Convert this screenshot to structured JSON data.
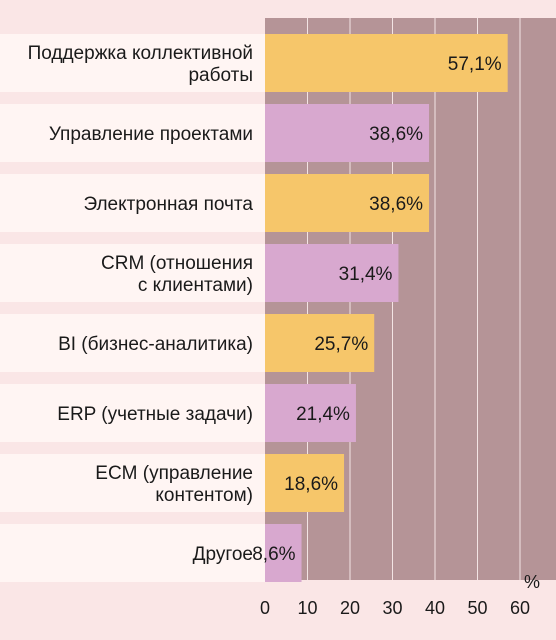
{
  "chart_data": {
    "type": "bar",
    "orientation": "horizontal",
    "categories": [
      [
        "Поддержка коллективной",
        "работы"
      ],
      [
        "Управление проектами"
      ],
      [
        "Электронная почта"
      ],
      [
        "CRM (отношения",
        "с клиентами)"
      ],
      [
        "BI (бизнес-аналитика)"
      ],
      [
        "ERP (учетные задачи)"
      ],
      [
        "ECM (управление",
        "контентом)"
      ],
      [
        "Другое"
      ]
    ],
    "values": [
      57.1,
      38.6,
      38.6,
      31.4,
      25.7,
      21.4,
      18.6,
      8.6
    ],
    "value_labels": [
      "57,1%",
      "38,6%",
      "38,6%",
      "31,4%",
      "25,7%",
      "21,4%",
      "18,6%",
      "8,6%"
    ],
    "xlim": [
      0,
      60
    ],
    "xticks": [
      "0",
      "10",
      "20",
      "30",
      "40",
      "50",
      "60"
    ],
    "unit": "%",
    "grid": true,
    "colors": {
      "background": "#fae6e6",
      "plot_background": "#b59497",
      "bar_alternate_1": "#f6c66a",
      "bar_alternate_2": "#d8a8cf",
      "label_band": "#fff5f3",
      "gridline": "#f3e4e4"
    }
  }
}
